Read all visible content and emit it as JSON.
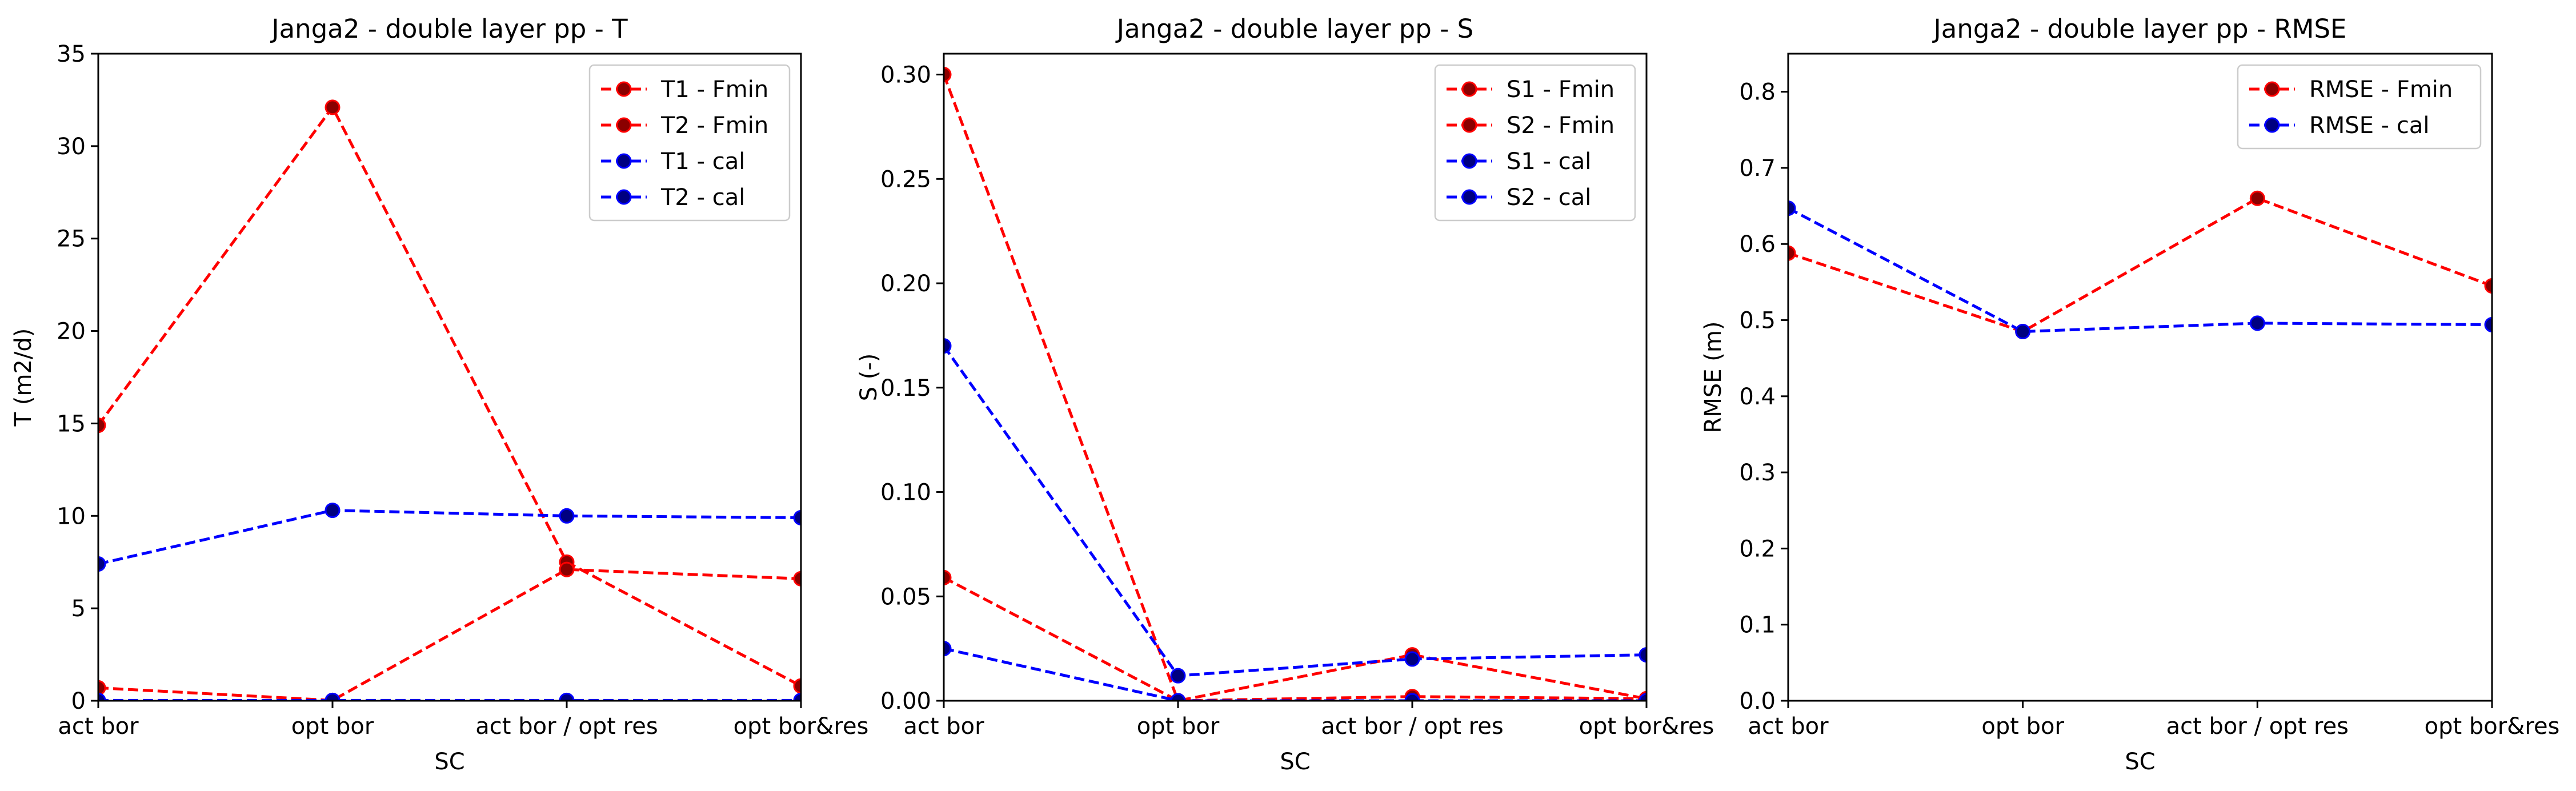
{
  "chart_data": [
    {
      "type": "line",
      "title": "Janga2 - double layer pp - T",
      "xlabel": "SC",
      "ylabel": "T (m2/d)",
      "categories": [
        "act bor",
        "opt bor",
        "act bor / opt res",
        "opt bor&res"
      ],
      "ylim": [
        0,
        35
      ],
      "yticks": [
        0,
        5,
        10,
        15,
        20,
        25,
        30,
        35
      ],
      "ytick_labels": [
        "0",
        "5",
        "10",
        "15",
        "20",
        "25",
        "30",
        "35"
      ],
      "legend_loc": "upper-right",
      "grid": false,
      "series": [
        {
          "name": "T1 - Fmin",
          "values": [
            14.9,
            32.1,
            7.5,
            0.8
          ],
          "color": "#ff0000",
          "marker_color": "#8b0000"
        },
        {
          "name": "T2 - Fmin",
          "values": [
            0.7,
            0.02,
            7.1,
            6.6
          ],
          "color": "#ff0000",
          "marker_color": "#8b0000"
        },
        {
          "name": "T1 - cal",
          "values": [
            7.4,
            10.3,
            10.0,
            9.9
          ],
          "color": "#0000ff",
          "marker_color": "#000080"
        },
        {
          "name": "T2 - cal",
          "values": [
            0.02,
            0.02,
            0.02,
            0.02
          ],
          "color": "#0000ff",
          "marker_color": "#000080"
        }
      ]
    },
    {
      "type": "line",
      "title": "Janga2 - double layer pp - S",
      "xlabel": "SC",
      "ylabel": "S (-)",
      "categories": [
        "act bor",
        "opt bor",
        "act bor / opt res",
        "opt bor&res"
      ],
      "ylim": [
        0,
        0.31
      ],
      "yticks": [
        0,
        0.05,
        0.1,
        0.15,
        0.2,
        0.25,
        0.3
      ],
      "ytick_labels": [
        "0.00",
        "0.05",
        "0.10",
        "0.15",
        "0.20",
        "0.25",
        "0.30"
      ],
      "legend_loc": "upper-right",
      "grid": false,
      "series": [
        {
          "name": "S1 - Fmin",
          "values": [
            0.3,
            0.0,
            0.002,
            0.001
          ],
          "color": "#ff0000",
          "marker_color": "#8b0000"
        },
        {
          "name": "S2 - Fmin",
          "values": [
            0.059,
            0.0,
            0.022,
            0.001
          ],
          "color": "#ff0000",
          "marker_color": "#8b0000"
        },
        {
          "name": "S1 - cal",
          "values": [
            0.17,
            0.012,
            0.02,
            0.022
          ],
          "color": "#0000ff",
          "marker_color": "#000080"
        },
        {
          "name": "S2 - cal",
          "values": [
            0.025,
            0.0,
            0.0,
            0.0
          ],
          "color": "#0000ff",
          "marker_color": "#000080"
        }
      ]
    },
    {
      "type": "line",
      "title": "Janga2 - double layer pp - RMSE",
      "xlabel": "SC",
      "ylabel": "RMSE (m)",
      "categories": [
        "act bor",
        "opt bor",
        "act bor / opt res",
        "opt bor&res"
      ],
      "ylim": [
        0,
        0.85
      ],
      "yticks": [
        0,
        0.1,
        0.2,
        0.3,
        0.4,
        0.5,
        0.6,
        0.7,
        0.8
      ],
      "ytick_labels": [
        "0.0",
        "0.1",
        "0.2",
        "0.3",
        "0.4",
        "0.5",
        "0.6",
        "0.7",
        "0.8"
      ],
      "legend_loc": "upper-right",
      "grid": false,
      "series": [
        {
          "name": "RMSE - Fmin",
          "values": [
            0.588,
            0.485,
            0.66,
            0.545
          ],
          "color": "#ff0000",
          "marker_color": "#8b0000"
        },
        {
          "name": "RMSE - cal",
          "values": [
            0.647,
            0.485,
            0.496,
            0.494
          ],
          "color": "#0000ff",
          "marker_color": "#000080"
        }
      ]
    }
  ]
}
